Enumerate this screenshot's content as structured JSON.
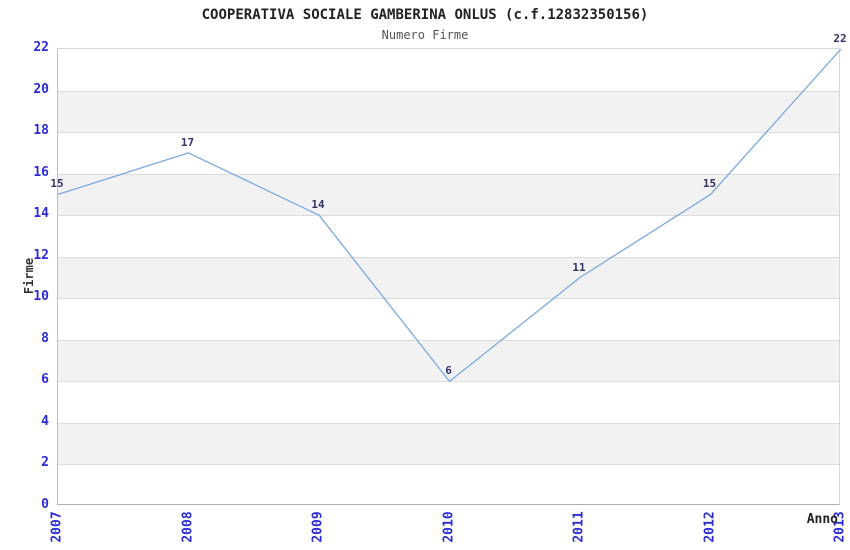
{
  "header": {
    "title": "COOPERATIVA SOCIALE GAMBERINA ONLUS (c.f.12832350156)",
    "subtitle": "Numero Firme"
  },
  "chart_data": {
    "type": "line",
    "title": "COOPERATIVA SOCIALE GAMBERINA ONLUS (c.f.12832350156)",
    "subtitle": "Numero Firme",
    "x": [
      "2007",
      "2008",
      "2009",
      "2010",
      "2011",
      "2012",
      "2013"
    ],
    "series": [
      {
        "name": "Numero Firme",
        "values": [
          15,
          17,
          14,
          6,
          11,
          15,
          22
        ]
      }
    ],
    "point_labels": [
      "15",
      "17",
      "14",
      "6",
      "11",
      "15",
      "22"
    ],
    "xlabel": "Anno",
    "ylabel": "Firme",
    "ylim": [
      0,
      22
    ],
    "ytick_step": 2,
    "ytick_labels": [
      "0",
      "2",
      "4",
      "6",
      "8",
      "10",
      "12",
      "14",
      "16",
      "18",
      "20",
      "22"
    ],
    "grid": "horizontal-alternating-bands",
    "legend_position": "none"
  },
  "colors": {
    "line": "#7aa9e0",
    "axis_tick_label": "#2b2bd5",
    "point_label": "#333366",
    "band_fill": "#f2f2f2",
    "grid_line": "#dcdcdc",
    "title_text": "#222222",
    "subtitle_text": "#555555",
    "axis_title_text": "#333333"
  }
}
